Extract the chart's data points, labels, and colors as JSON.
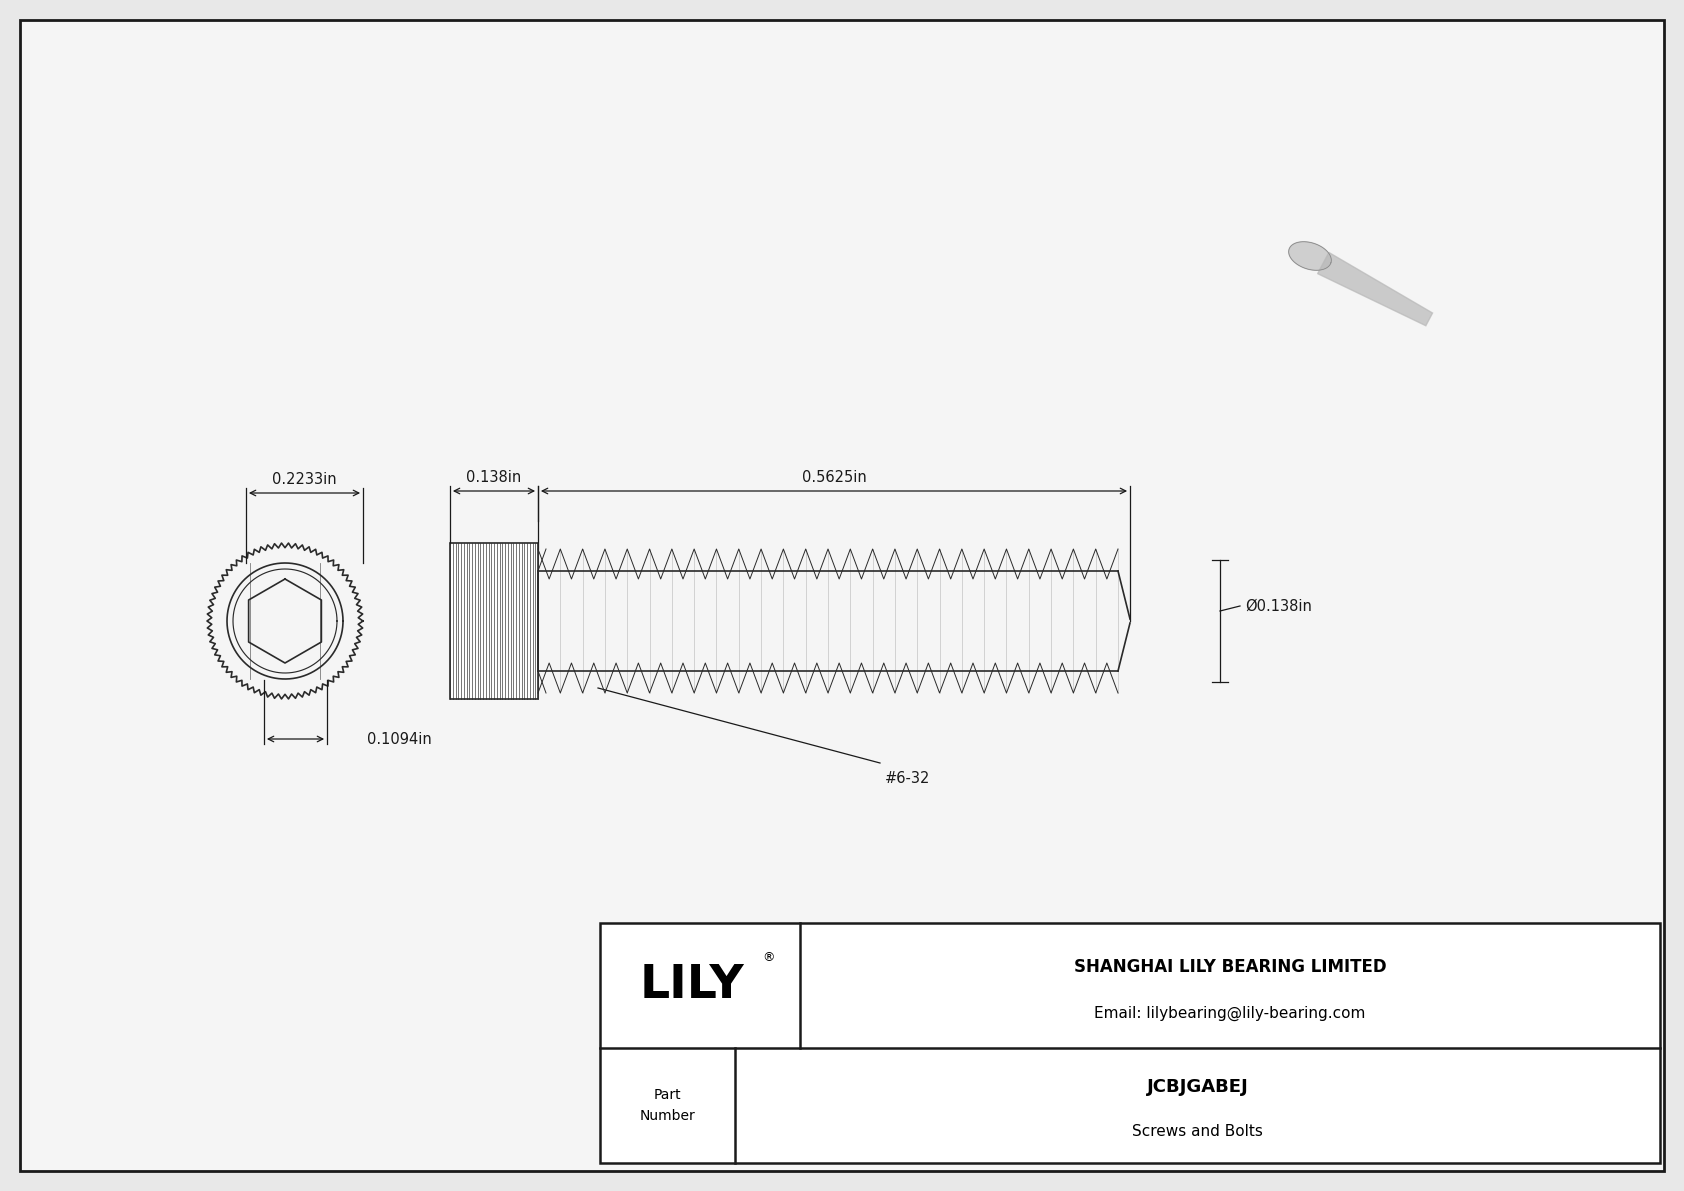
{
  "bg_color": "#e8e8e8",
  "border_color": "#1a1a1a",
  "drawing_bg": "#f5f5f5",
  "title_company": "SHANGHAI LILY BEARING LIMITED",
  "title_email": "Email: lilybearing@lily-bearing.com",
  "part_number": "JCBJGABEJ",
  "part_category": "Screws and Bolts",
  "brand": "LILY",
  "brand_registered": "®",
  "dim_head_diameter": "0.2233in",
  "dim_socket_diameter": "0.1094in",
  "dim_head_length": "0.138in",
  "dim_shank_length": "0.5625in",
  "dim_shank_diameter": "Ø0.138in",
  "thread_label": "#6-32",
  "line_color": "#2a2a2a",
  "dim_color": "#1a1a1a",
  "font_size_dim": 10.5,
  "font_size_brand": 34,
  "font_size_company": 12,
  "font_size_part": 13,
  "font_size_thread": 10.5
}
